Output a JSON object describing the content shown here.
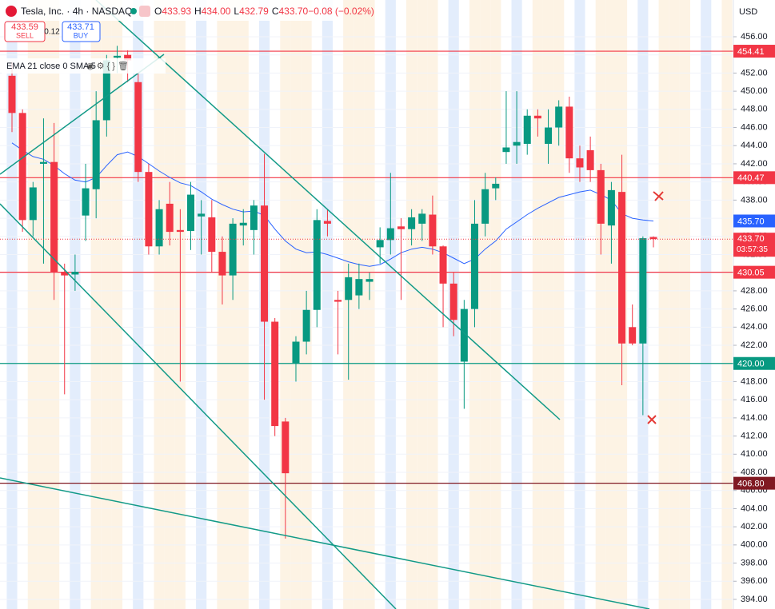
{
  "header": {
    "symbol": "Tesla, Inc. · 4h · NASDAQ",
    "ohlc": [
      {
        "key": "O",
        "value": "433.93"
      },
      {
        "key": "H",
        "value": "434.00"
      },
      {
        "key": "L",
        "value": "432.79"
      },
      {
        "key": "C",
        "value": "433.70"
      },
      {
        "key": "",
        "value": "−0.08 (−0.02%)"
      }
    ],
    "sell_price": "433.59",
    "sell": "SELL",
    "spread": "0.12",
    "buy_price": "433.71",
    "buy": "BUY",
    "indicator": "EMA 21 close 0 SMA 5",
    "currency": "USD"
  },
  "chart_data": {
    "type": "candlestick",
    "up_color": "#089981",
    "down_color": "#f23645",
    "open": [
      451.7,
      447.6,
      435.8,
      442.0,
      442.2,
      430.1,
      429.8,
      436.3,
      439.2,
      446.8,
      453.7,
      454,
      451,
      441.1,
      432.9,
      437.6,
      434.7,
      434.6,
      436.2,
      436.1,
      432.3,
      429.7,
      435.2,
      434.7,
      437.4,
      424.6,
      413.6,
      420,
      422.4,
      425.9,
      435.7,
      427,
      427,
      427.5,
      429,
      432.8,
      433.6,
      435.1,
      434.8,
      435.4,
      436.4,
      432.9,
      428.8,
      420.2,
      426,
      435.4,
      439.3,
      443.3,
      444,
      444.2,
      447.3,
      444.2,
      446,
      448.3,
      442.6,
      443.5,
      441.3,
      435.2,
      438.9,
      424,
      422.2,
      433.93
    ],
    "high": [
      453.2,
      448,
      440,
      447,
      446.5,
      431,
      432,
      442,
      450,
      454,
      455,
      454.5,
      452,
      442,
      438,
      440,
      437,
      440,
      438,
      438,
      434,
      436,
      437,
      438,
      443.1,
      425,
      414,
      423,
      428,
      437,
      437,
      428,
      431,
      431,
      430,
      435,
      441,
      436,
      437,
      437,
      438.5,
      433,
      430,
      427,
      438,
      441,
      440.5,
      450,
      450,
      448,
      448,
      448,
      449,
      449.4,
      444,
      445,
      442,
      440,
      443,
      426.5,
      434,
      434
    ],
    "low": [
      445.5,
      434.5,
      434,
      431,
      427,
      416.6,
      428,
      433.5,
      436,
      445,
      452,
      451,
      440,
      432,
      432,
      433,
      418,
      432.5,
      432,
      430,
      426.5,
      427,
      433,
      432,
      416,
      412,
      400.7,
      418,
      421,
      424,
      434,
      421,
      418.2,
      426,
      427,
      431,
      432,
      427,
      433,
      433.5,
      432,
      424,
      423,
      415,
      424,
      434,
      438,
      442,
      442,
      443,
      445,
      442,
      444,
      441,
      440,
      440,
      432,
      431,
      417.6,
      422,
      414.3,
      432.79
    ],
    "close": [
      447.6,
      435.8,
      439.4,
      442.2,
      430.1,
      429.7,
      430.1,
      439.3,
      446.8,
      453.4,
      453.9,
      453.4,
      441.1,
      432.9,
      437,
      434.5,
      434.5,
      438.6,
      436.5,
      432.3,
      429.7,
      435.4,
      435.5,
      437.4,
      424.6,
      413.1,
      407.9,
      422.4,
      425.9,
      435.8,
      435.4,
      426.8,
      429.5,
      429.3,
      429.3,
      433.6,
      434.9,
      434.8,
      436.1,
      436.5,
      432.9,
      428.8,
      424.8,
      426,
      435.4,
      439.2,
      439.8,
      443.8,
      444.4,
      447.3,
      447,
      446,
      448.3,
      442.6,
      441.6,
      441.3,
      435.4,
      439.1,
      422.2,
      422.2,
      433.8,
      433.7
    ],
    "ema": {
      "color": "#2962ff",
      "values": [
        444.3,
        443.5,
        442.8,
        442.5,
        441.8,
        440.9,
        440.2,
        440.0,
        440.5,
        441.8,
        443.0,
        443.3,
        442.8,
        442.0,
        441.2,
        440.5,
        439.9,
        439.6,
        438.9,
        438.1,
        437.5,
        437.0,
        436.7,
        436.8,
        436.3,
        434.8,
        433.5,
        432.6,
        432.2,
        432.3,
        432.0,
        431.6,
        431.2,
        430.9,
        430.7,
        430.9,
        431.5,
        432.2,
        432.6,
        432.8,
        432.6,
        432.2,
        431.6,
        431.0,
        431.5,
        432.6,
        433.5,
        434.8,
        435.6,
        436.4,
        437.1,
        437.7,
        438.3,
        438.6,
        438.9,
        439.1,
        438.6,
        438.0,
        436.5,
        436.0,
        435.8,
        435.7
      ],
      "last": {
        "value": 435.7,
        "label": "435.70"
      }
    },
    "current": {
      "value": 433.7,
      "label": "433.70",
      "countdown": "03:57:35",
      "color": "#f23645"
    },
    "levels": [
      {
        "value": 454.41,
        "color": "#f23645"
      },
      {
        "value": 440.47,
        "color": "#f23645"
      },
      {
        "value": 430.05,
        "color": "#f23645"
      },
      {
        "value": 420,
        "label": "420.00",
        "color": "#089981"
      },
      {
        "value": 406.8,
        "label": "406.80",
        "color": "#801922"
      }
    ],
    "ylim": [
      392.94,
      460.05
    ],
    "yticks": [
      {
        "value": 456,
        "label": "456.00"
      },
      {
        "value": 454,
        "label": "454.00"
      },
      {
        "value": 452,
        "label": "452.00"
      },
      {
        "value": 450,
        "label": "450.00"
      },
      {
        "value": 448,
        "label": "448.00"
      },
      {
        "value": 446,
        "label": "446.00"
      },
      {
        "value": 444,
        "label": "444.00"
      },
      {
        "value": 442,
        "label": "442.00"
      },
      {
        "value": 440,
        "label": "440.00"
      },
      {
        "value": 438,
        "label": "438.00"
      },
      {
        "value": 436,
        "label": "436.00"
      },
      {
        "value": 434,
        "label": "434.00"
      },
      {
        "value": 432,
        "label": "432.00"
      },
      {
        "value": 430,
        "label": "430.00"
      },
      {
        "value": 428,
        "label": "428.00"
      },
      {
        "value": 426,
        "label": "426.00"
      },
      {
        "value": 424,
        "label": "424.00"
      },
      {
        "value": 422,
        "label": "422.00"
      },
      {
        "value": 420,
        "label": "420.00"
      },
      {
        "value": 418,
        "label": "418.00"
      },
      {
        "value": 416,
        "label": "416.00"
      },
      {
        "value": 414,
        "label": "414.00"
      },
      {
        "value": 412,
        "label": "412.00"
      },
      {
        "value": 410,
        "label": "410.00"
      },
      {
        "value": 408,
        "label": "408.00"
      },
      {
        "value": 406,
        "label": "406.00"
      },
      {
        "value": 404,
        "label": "404.00"
      },
      {
        "value": 402,
        "label": "402.00"
      },
      {
        "value": 400,
        "label": "400.00"
      },
      {
        "value": 398,
        "label": "398.00"
      },
      {
        "value": 396,
        "label": "396.00"
      },
      {
        "value": 394,
        "label": "394.00"
      }
    ]
  }
}
